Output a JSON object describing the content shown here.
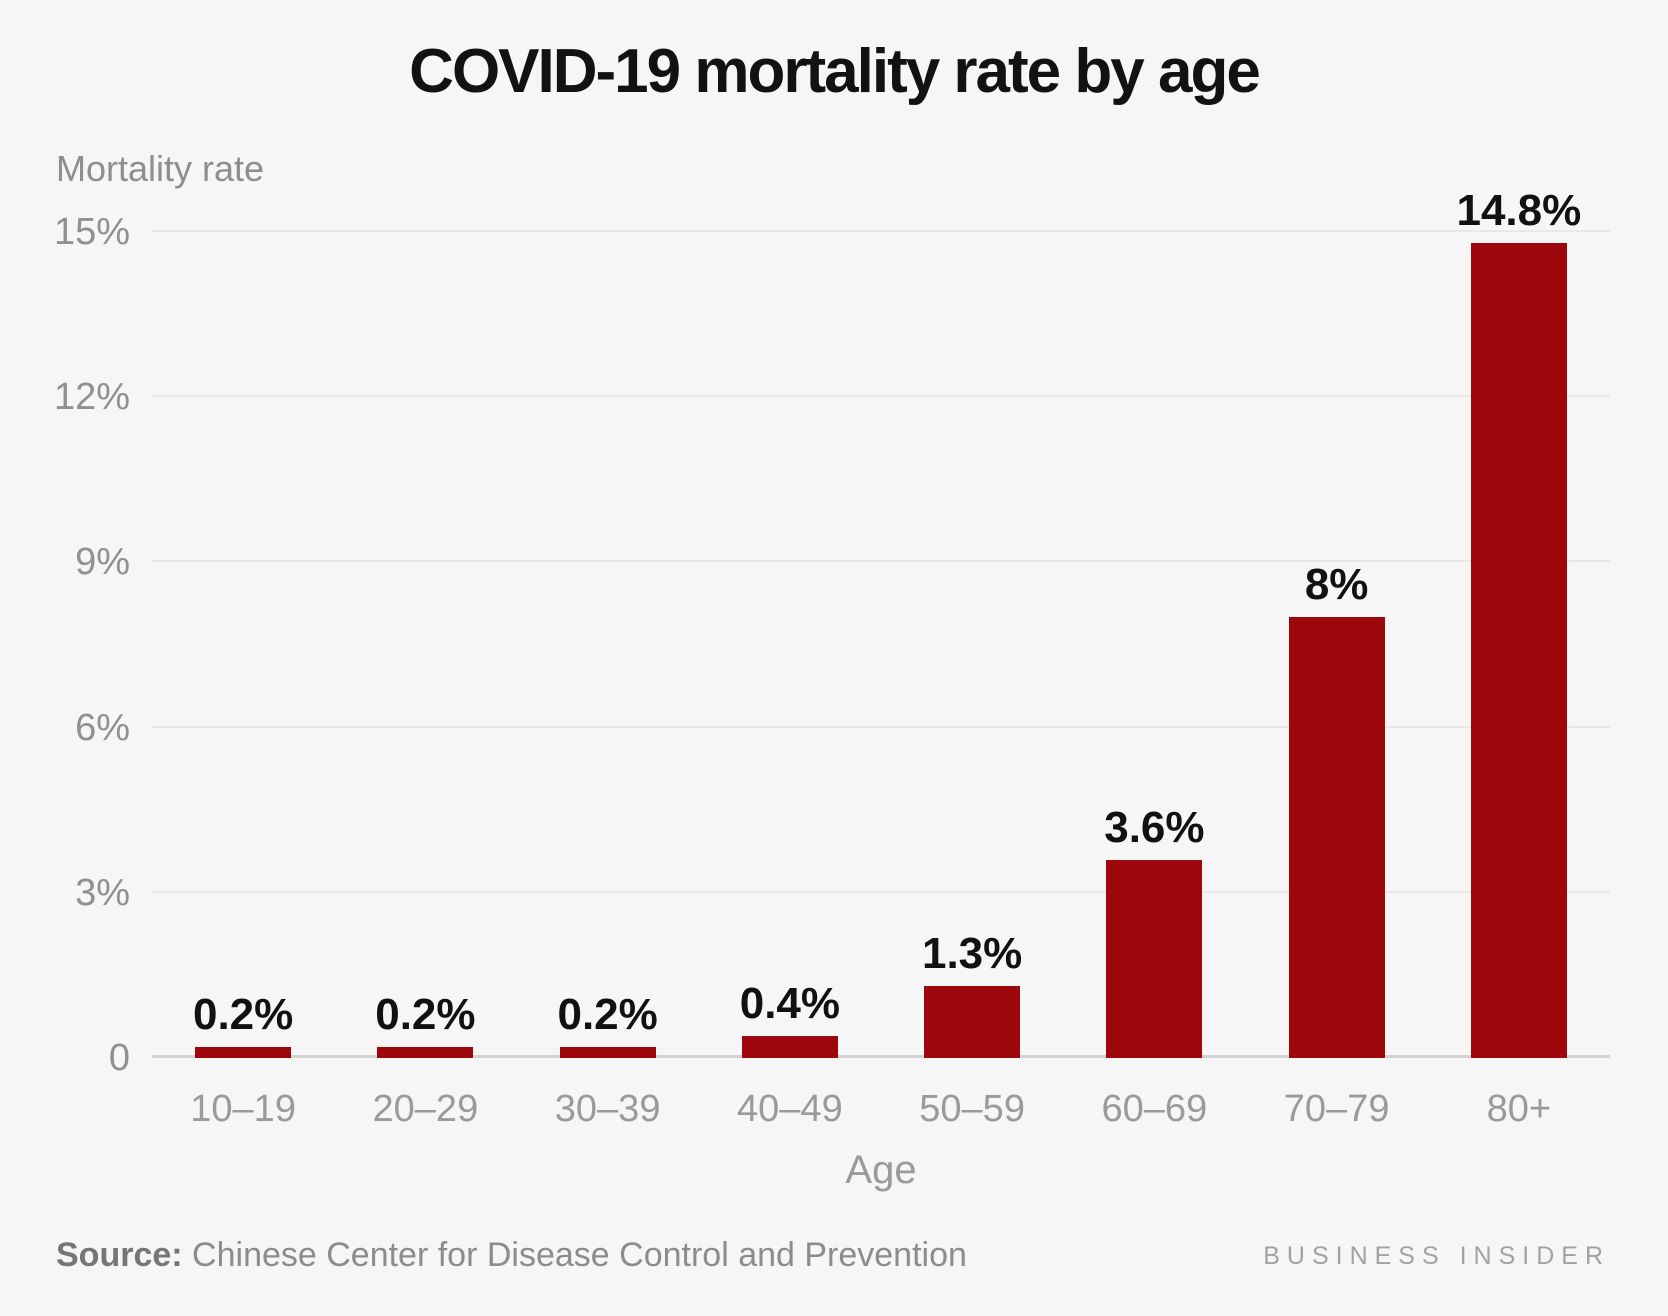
{
  "title": "COVID-19 mortality rate by age",
  "axis": {
    "y_label": "Mortality rate",
    "x_label": "Age"
  },
  "footer": {
    "source_prefix": "Source:",
    "source_text": "Chinese Center for Disease Control and Prevention",
    "brand": "BUSINESS INSIDER"
  },
  "colors": {
    "bar": "#9e070c",
    "background": "#f6f6f7",
    "grid": "#e9e9ea",
    "baseline": "#d2d2d2",
    "tick_text": "#909090",
    "category_text": "#9a9a9a",
    "value_label_text": "#111111",
    "title_text": "#121212"
  },
  "chart_data": {
    "type": "bar",
    "title": "COVID-19 mortality rate by age",
    "xlabel": "Age",
    "ylabel": "Mortality rate",
    "categories": [
      "10–19",
      "20–29",
      "30–39",
      "40–49",
      "50–59",
      "60–69",
      "70–79",
      "80+"
    ],
    "values": [
      0.2,
      0.2,
      0.2,
      0.4,
      1.3,
      3.6,
      8,
      14.8
    ],
    "value_labels": [
      "0.2%",
      "0.2%",
      "0.2%",
      "0.4%",
      "1.3%",
      "3.6%",
      "8%",
      "14.8%"
    ],
    "ylim": [
      0,
      15
    ],
    "yticks": [
      0,
      3,
      6,
      9,
      12,
      15
    ],
    "ytick_labels": [
      "0",
      "3%",
      "6%",
      "9%",
      "12%",
      "15%"
    ],
    "grid": true,
    "legend_position": "none",
    "bar_color": "#9e070c"
  }
}
